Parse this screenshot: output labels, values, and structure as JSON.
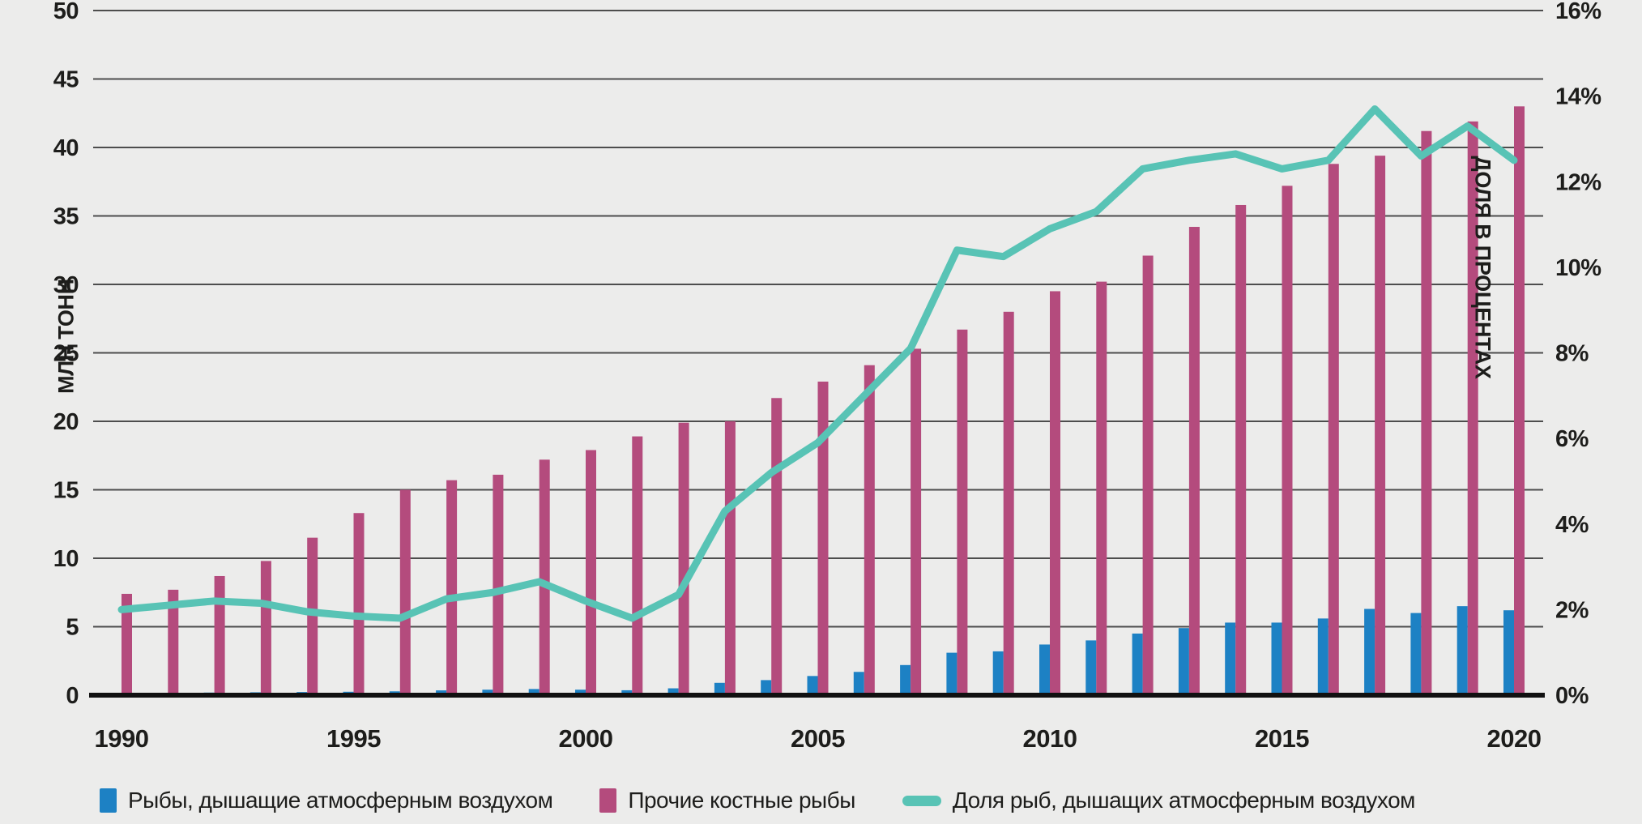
{
  "colors": {
    "background": "#ececeb",
    "text": "#1d1d1b",
    "gridline": "#4d4d4d",
    "baseline": "#111111",
    "air_breathing_blue": "#1d81c4",
    "other_bony_pink": "#b44b7d",
    "share_line_teal": "#58c3b5"
  },
  "chart_data": {
    "type": "bar",
    "title": "",
    "years": [
      1990,
      1991,
      1992,
      1993,
      1994,
      1995,
      1996,
      1997,
      1998,
      1999,
      2000,
      2001,
      2002,
      2003,
      2004,
      2005,
      2006,
      2007,
      2008,
      2009,
      2010,
      2011,
      2012,
      2013,
      2014,
      2015,
      2016,
      2017,
      2018,
      2019,
      2020
    ],
    "series": [
      {
        "name": "Рыбы, дышащие атмосферным воздухом",
        "type": "bar",
        "axis": "left",
        "color": "#1d81c4",
        "values": [
          0.15,
          0.17,
          0.19,
          0.21,
          0.23,
          0.25,
          0.28,
          0.35,
          0.4,
          0.45,
          0.4,
          0.36,
          0.5,
          0.9,
          1.1,
          1.4,
          1.7,
          2.2,
          3.1,
          3.2,
          3.7,
          4.0,
          4.5,
          4.9,
          5.3,
          5.3,
          5.6,
          6.3,
          6.0,
          6.5,
          6.2
        ]
      },
      {
        "name": "Прочие костные рыбы",
        "type": "bar",
        "axis": "left",
        "color": "#b44b7d",
        "values": [
          7.4,
          7.7,
          8.7,
          9.8,
          11.5,
          13.3,
          15.0,
          15.7,
          16.1,
          17.2,
          17.9,
          18.9,
          19.9,
          20.0,
          21.7,
          22.9,
          24.1,
          25.3,
          26.7,
          28.0,
          29.5,
          30.2,
          32.1,
          34.2,
          35.8,
          37.2,
          38.8,
          39.4,
          41.2,
          41.9,
          43.0
        ]
      },
      {
        "name": "Доля рыб, дышащих атмосферным воздухом",
        "type": "line",
        "axis": "right",
        "color": "#58c3b5",
        "values_pct": [
          2.0,
          2.1,
          2.2,
          2.15,
          1.95,
          1.85,
          1.8,
          2.25,
          2.4,
          2.65,
          2.2,
          1.8,
          2.35,
          4.3,
          5.2,
          5.9,
          7.0,
          8.1,
          10.4,
          10.25,
          10.9,
          11.3,
          12.3,
          12.5,
          12.65,
          12.3,
          12.5,
          13.7,
          12.6,
          13.3,
          12.5
        ]
      }
    ],
    "left_axis": {
      "title": "МЛН ТОНН",
      "min": 0,
      "max": 50,
      "step": 5,
      "tick_labels": [
        "0",
        "5",
        "10",
        "15",
        "20",
        "25",
        "30",
        "35",
        "40",
        "45",
        "50"
      ]
    },
    "right_axis": {
      "title": "ДОЛЯ В ПРОЦЕНТАХ",
      "min": 0,
      "max": 16,
      "step": 2,
      "tick_labels": [
        "0%",
        "2%",
        "4%",
        "6%",
        "8%",
        "10%",
        "12%",
        "14%",
        "16%"
      ]
    },
    "x_axis": {
      "tick_labels": [
        "1990",
        "1995",
        "2000",
        "2005",
        "2010",
        "2015",
        "2020"
      ]
    },
    "grid": true,
    "legend_position": "bottom"
  }
}
